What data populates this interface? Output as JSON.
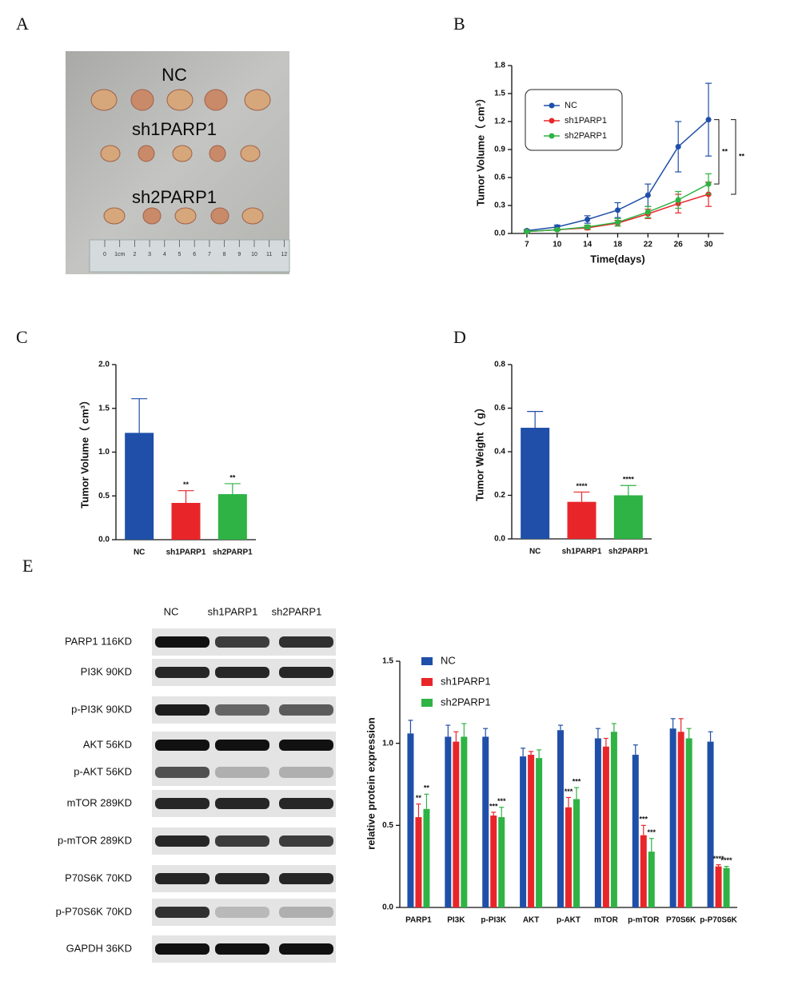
{
  "panels": [
    "A",
    "B",
    "C",
    "D",
    "E"
  ],
  "photo": {
    "groups": [
      "NC",
      "sh1PARP1",
      "sh2PARP1"
    ],
    "ruler": [
      "0",
      "1cm",
      "2",
      "3",
      "4",
      "5",
      "6",
      "7",
      "8",
      "9",
      "10",
      "11",
      "12"
    ]
  },
  "blot": {
    "columns": [
      "NC",
      "sh1PARP1",
      "sh2PARP1"
    ],
    "rows": [
      "PARP1 116KD",
      "PI3K 90KD",
      "p-PI3K 90KD",
      "AKT 56KD",
      "p-AKT 56KD",
      "mTOR 289KD",
      "p-mTOR 289KD",
      "P70S6K 70KD",
      "p-P70S6K 70KD",
      "GAPDH 36KD"
    ]
  },
  "chart_data": [
    {
      "type": "line",
      "xlabel": "Time(days)",
      "ylabel": "Tumor Volume（ cm³）",
      "categories": [
        "7",
        "10",
        "14",
        "18",
        "22",
        "26",
        "30"
      ],
      "ylim": [
        0,
        1.8
      ],
      "yticks": [
        {
          "value": 0,
          "label": "0.0"
        },
        0.3,
        0.6,
        0.9,
        1.2,
        1.5,
        1.8
      ],
      "series": [
        {
          "name": "NC",
          "color": "#1f4fa8",
          "values": [
            0.03,
            0.07,
            0.15,
            0.25,
            0.41,
            0.93,
            1.22
          ],
          "errors": [
            0.01,
            0.02,
            0.04,
            0.08,
            0.12,
            0.27,
            0.39
          ]
        },
        {
          "name": "sh1PARP1",
          "color": "#e8262a",
          "values": [
            0.02,
            0.04,
            0.06,
            0.11,
            0.21,
            0.32,
            0.42
          ],
          "errors": [
            0.01,
            0.01,
            0.02,
            0.03,
            0.05,
            0.1,
            0.13
          ]
        },
        {
          "name": "sh2PARP1",
          "color": "#2eb344",
          "values": [
            0.02,
            0.04,
            0.07,
            0.12,
            0.23,
            0.36,
            0.53
          ],
          "errors": [
            0.01,
            0.01,
            0.02,
            0.04,
            0.06,
            0.09,
            0.11
          ]
        }
      ],
      "annotations": [
        "**",
        "**"
      ]
    },
    {
      "type": "bar",
      "ylabel": "Tumor Volume（ cm³）",
      "categories": [
        "NC",
        "sh1PARP1",
        "sh2PARP1"
      ],
      "values": [
        1.22,
        0.42,
        0.52
      ],
      "errors": [
        0.39,
        0.14,
        0.12
      ],
      "colors": [
        "#1f4fa8",
        "#e8262a",
        "#2eb344"
      ],
      "annotations": [
        null,
        "**",
        "**"
      ],
      "ylim": [
        0,
        2
      ],
      "yticks": [
        {
          "value": 0,
          "label": "0.0"
        },
        0.5,
        {
          "value": 1,
          "label": "1.0"
        },
        1.5,
        {
          "value": 2,
          "label": "2.0"
        }
      ]
    },
    {
      "type": "bar",
      "ylabel": "Tumor Weight（ g）",
      "categories": [
        "NC",
        "sh1PARP1",
        "sh2PARP1"
      ],
      "values": [
        0.51,
        0.17,
        0.2
      ],
      "errors": [
        0.075,
        0.045,
        0.045
      ],
      "colors": [
        "#1f4fa8",
        "#e8262a",
        "#2eb344"
      ],
      "annotations": [
        null,
        "****",
        "****"
      ],
      "ylim": [
        0,
        0.8
      ],
      "yticks": [
        {
          "value": 0,
          "label": "0.0"
        },
        0.2,
        0.4,
        0.6,
        0.8
      ]
    },
    {
      "type": "bar",
      "ylabel": "relative protein expression",
      "categories": [
        "PARP1",
        "PI3K",
        "p-PI3K",
        "AKT",
        "p-AKT",
        "mTOR",
        "p-mTOR",
        "P70S6K",
        "p-P70S6K"
      ],
      "ylim": [
        0,
        1.5
      ],
      "yticks": [
        {
          "value": 0,
          "label": "0.0"
        },
        0.5,
        {
          "value": 1,
          "label": "1.0"
        },
        1.5
      ],
      "series": [
        {
          "name": "NC",
          "color": "#1f4fa8",
          "values": [
            1.06,
            1.04,
            1.04,
            0.92,
            1.08,
            1.03,
            0.93,
            1.09,
            1.01
          ],
          "errors": [
            0.08,
            0.07,
            0.05,
            0.05,
            0.03,
            0.06,
            0.06,
            0.06,
            0.06
          ],
          "annotations": [
            null,
            null,
            null,
            null,
            null,
            null,
            null,
            null,
            null
          ]
        },
        {
          "name": "sh1PARP1",
          "color": "#e8262a",
          "values": [
            0.55,
            1.01,
            0.56,
            0.93,
            0.61,
            0.98,
            0.44,
            1.07,
            0.25
          ],
          "errors": [
            0.08,
            0.06,
            0.02,
            0.02,
            0.06,
            0.05,
            0.06,
            0.08,
            0.01
          ],
          "annotations": [
            "**",
            null,
            "***",
            null,
            "***",
            null,
            "***",
            null,
            "****"
          ]
        },
        {
          "name": "sh2PARP1",
          "color": "#2eb344",
          "values": [
            0.6,
            1.04,
            0.55,
            0.91,
            0.66,
            1.07,
            0.34,
            1.03,
            0.24
          ],
          "errors": [
            0.09,
            0.08,
            0.06,
            0.05,
            0.07,
            0.05,
            0.08,
            0.06,
            0.01
          ],
          "annotations": [
            "**",
            null,
            "***",
            null,
            "***",
            null,
            "***",
            null,
            "****"
          ]
        }
      ]
    }
  ]
}
